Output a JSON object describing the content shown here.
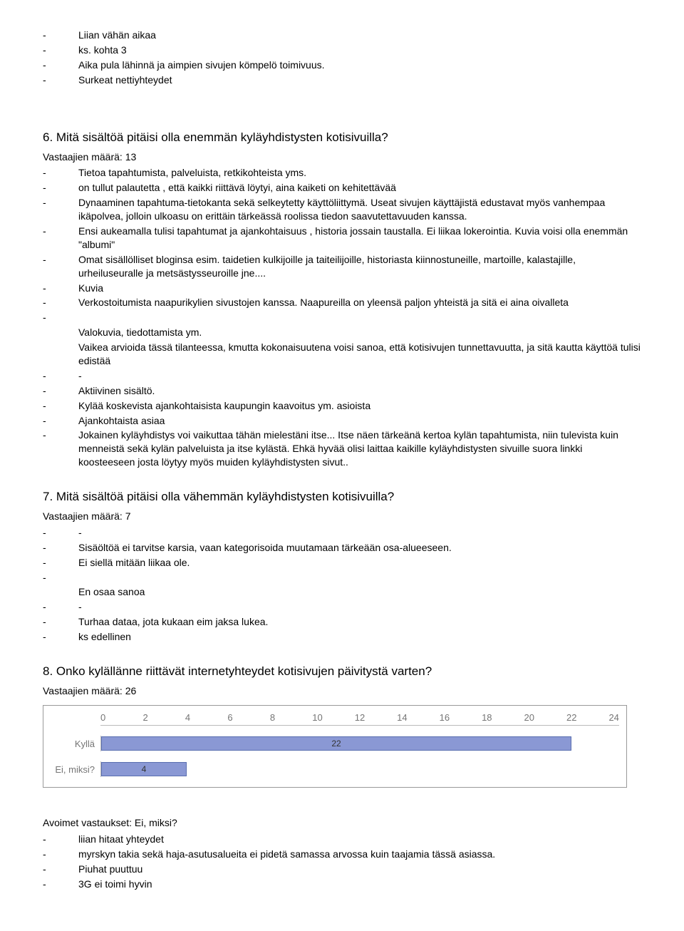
{
  "topList": [
    "Liian vähän aikaa",
    "ks. kohta 3",
    "Aika pula lähinnä ja aimpien sivujen kömpelö toimivuus.",
    "Surkeat nettiyhteydet"
  ],
  "q6": {
    "heading": "6. Mitä sisältöä pitäisi olla enemmän kyläyhdistysten kotisivuilla?",
    "count": "Vastaajien määrä: 13",
    "items": [
      "Tietoa tapahtumista, palveluista, retkikohteista yms.",
      "on tullut palautetta , että kaikki riittävä löytyi, aina kaiketi on kehitettävää",
      "Dynaaminen tapahtuma-tietokanta sekä selkeytetty käyttöliittymä. Useat sivujen käyttäjistä edustavat myös vanhempaa ikäpolvea, jolloin ulkoasu on erittäin tärkeässä roolissa tiedon saavutettavuuden kanssa.",
      "Ensi aukeamalla tulisi tapahtumat ja ajankohtaisuus , historia jossain taustalla. Ei liikaa lokerointia. Kuvia voisi olla enemmän \"albumi\"",
      "Omat sisällölliset bloginsa esim. taidetien kulkijoille ja taiteilijoille, historiasta kiinnostuneille, martoille, kalastajille, urheiluseuralle ja metsästysseuroille  jne....",
      "Kuvia",
      "Verkostoitumista naapurikylien sivustojen kanssa. Naapureilla on yleensä paljon yhteistä ja sitä ei aina oivalleta",
      "",
      "__NOBULLET__Valokuvia, tiedottamista ym.",
      "__NOBULLET__Vaikea arvioida tässä tilanteessa, kmutta kokonaisuutena voisi sanoa, että kotisivujen tunnettavuutta, ja sitä kautta käyttöä tulisi edistää",
      "-",
      "Aktiivinen sisältö.",
      "Kylää koskevista ajankohtaisista kaupungin kaavoitus ym. asioista",
      "Ajankohtaista asiaa",
      "Jokainen kyläyhdistys voi vaikuttaa tähän mielestäni itse... Itse näen tärkeänä kertoa kylän tapahtumista, niin tulevista kuin menneistä sekä kylän palveluista ja itse kylästä. Ehkä hyvää olisi laittaa kaikille kyläyhdistysten sivuille suora linkki koosteeseen josta löytyy myös muiden kyläyhdistysten sivut.."
    ]
  },
  "q7": {
    "heading": "7. Mitä sisältöä pitäisi olla vähemmän kyläyhdistysten kotisivuilla?",
    "count": "Vastaajien määrä: 7",
    "items": [
      "-",
      "Sisäöltöä ei tarvitse karsia, vaan kategorisoida muutamaan tärkeään osa-alueeseen.",
      "Ei siellä mitään liikaa ole.",
      "",
      "__NOBULLET__En osaa sanoa",
      "-",
      "Turhaa dataa, jota kukaan eim jaksa lukea.",
      "ks edellinen"
    ]
  },
  "q8": {
    "heading": "8. Onko kylällänne riittävät internetyhteydet kotisivujen päivitystä varten?",
    "count": "Vastaajien määrä: 26",
    "chart": {
      "type": "bar-horizontal",
      "axis_max": 24,
      "axis_step": 2,
      "ticks": [
        "0",
        "2",
        "4",
        "6",
        "8",
        "10",
        "12",
        "14",
        "16",
        "18",
        "20",
        "22",
        "24"
      ],
      "background_color": "#ffffff",
      "grid_color": "#bbbbbb",
      "rows": [
        {
          "label": "Kyllä",
          "value": 22,
          "bar_color": "#8a98d4",
          "border_color": "#5a6fb0"
        },
        {
          "label": "Ei, miksi?",
          "value": 4,
          "bar_color": "#8a98d4",
          "border_color": "#5a6fb0"
        }
      ],
      "label_color": "#757575",
      "label_fontsize": 13,
      "value_fontsize": 12
    },
    "open_heading": "Avoimet vastaukset: Ei, miksi?",
    "open_items": [
      "liian hitaat yhteydet",
      "myrskyn takia sekä haja-asutusalueita ei pidetä samassa arvossa kuin taajamia tässä asiassa.",
      "Piuhat puuttuu",
      "3G ei toimi hyvin"
    ]
  }
}
